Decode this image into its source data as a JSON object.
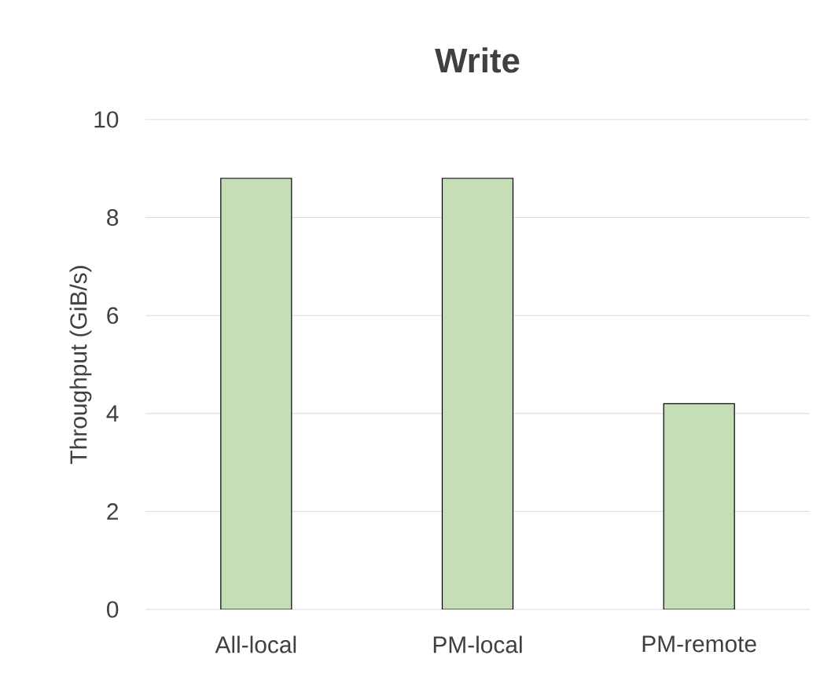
{
  "chart_data": {
    "type": "bar",
    "title": "Write",
    "ylabel": "Throughput (GiB/s)",
    "categories": [
      "All-local",
      "PM-local",
      "PM-remote"
    ],
    "values": [
      8.8,
      8.8,
      4.2
    ],
    "color": "#c6deb5",
    "ylim": [
      0,
      10
    ],
    "yticks": [
      0,
      2,
      4,
      6,
      8,
      10
    ],
    "grid": "y"
  }
}
